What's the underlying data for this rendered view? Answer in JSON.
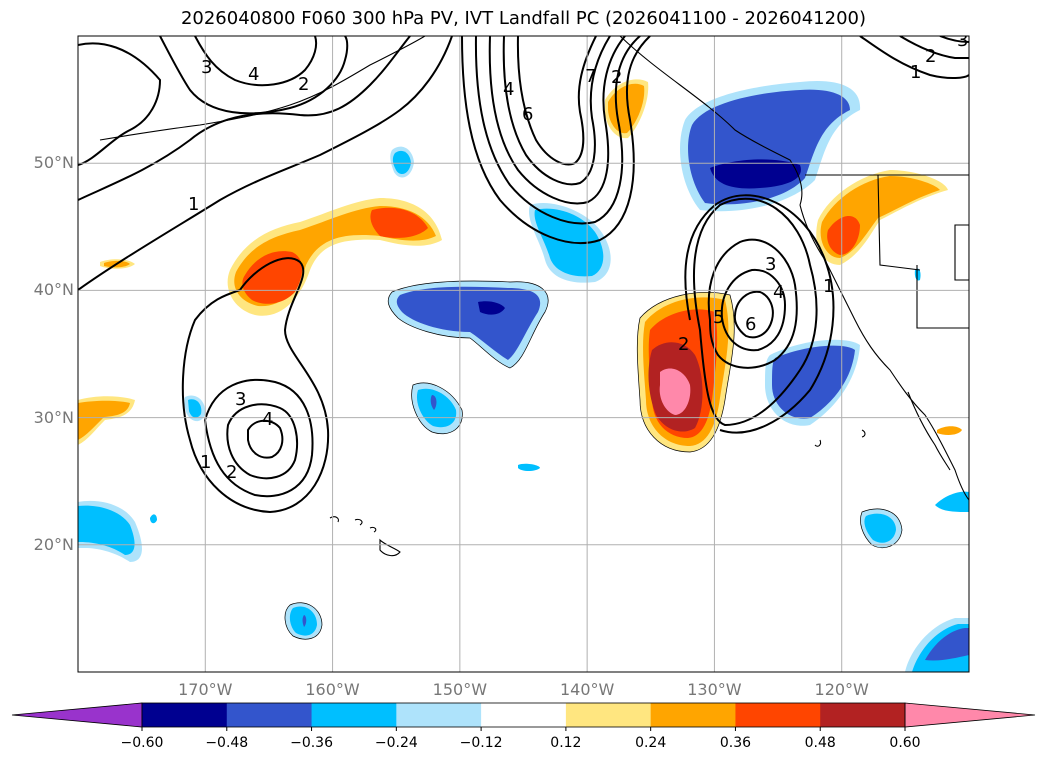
{
  "title": "2026040800 F060 300 hPa PV, IVT Landfall PC (2026041100 - 2026041200)",
  "map": {
    "lat_ticks": [
      {
        "label": "50°N",
        "lat": 50
      },
      {
        "label": "40°N",
        "lat": 40
      },
      {
        "label": "30°N",
        "lat": 30
      },
      {
        "label": "20°N",
        "lat": 20
      }
    ],
    "lon_ticks": [
      {
        "label": "170°W",
        "lon": -170
      },
      {
        "label": "160°W",
        "lon": -160
      },
      {
        "label": "150°W",
        "lon": -150
      },
      {
        "label": "140°W",
        "lon": -140
      },
      {
        "label": "130°W",
        "lon": -130
      },
      {
        "label": "120°W",
        "lon": -120
      }
    ],
    "extent": {
      "lon_min": -180,
      "lon_max": -110,
      "lat_min": 10,
      "lat_max": 60
    },
    "contour_labels": [
      "1",
      "2",
      "3",
      "4",
      "5",
      "6",
      "7"
    ]
  },
  "colorbar": {
    "ticks": [
      "−0.60",
      "−0.48",
      "−0.36",
      "−0.24",
      "−0.12",
      "0.12",
      "0.24",
      "0.36",
      "0.48",
      "0.60"
    ],
    "colors": [
      "#9933cc",
      "#000090",
      "#3355cc",
      "#00bfff",
      "#aee3fb",
      "#ffffff",
      "#ffe680",
      "#ffa500",
      "#ff4500",
      "#b22222",
      "#ff88aa"
    ]
  }
}
